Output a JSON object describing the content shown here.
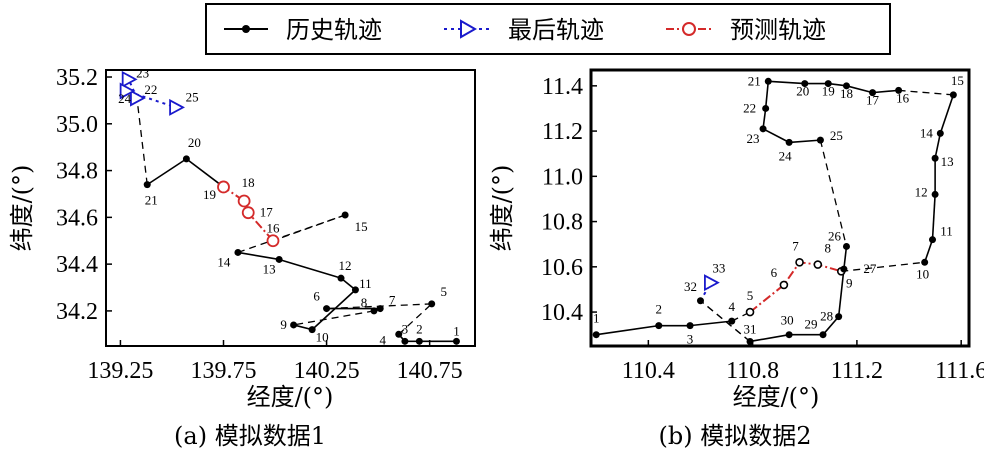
{
  "legend": {
    "items": [
      {
        "label": "历史轨迹",
        "color": "#000000",
        "marker": "filled-circle",
        "line": "solid"
      },
      {
        "label": "最后轨迹",
        "color": "#1a1acc",
        "marker": "triangle-right",
        "line": "dotted"
      },
      {
        "label": "预测轨迹",
        "color": "#d42a2a",
        "marker": "open-circle",
        "line": "dashdot"
      }
    ]
  },
  "colors": {
    "history": "#000000",
    "last": "#1a1acc",
    "predicted": "#d42a2a",
    "connector": "#000000"
  },
  "chart_data": [
    {
      "type": "line",
      "caption": "(a) 模拟数据1",
      "xlabel": "经度/(°)",
      "ylabel": "纬度/(°)",
      "xlim": [
        139.18,
        140.97
      ],
      "ylim": [
        34.05,
        35.23
      ],
      "xticks": [
        139.25,
        139.75,
        140.25,
        140.75
      ],
      "xtick_labels": [
        "139.25",
        "139.75",
        "140.25",
        "140.75"
      ],
      "yticks": [
        34.2,
        34.4,
        34.6,
        34.8,
        35.0,
        35.2
      ],
      "ytick_labels": [
        "34.2",
        "34.4",
        "34.6",
        "34.8",
        "35.0",
        "35.2"
      ],
      "points": [
        {
          "id": 1,
          "x": 140.88,
          "y": 34.07
        },
        {
          "id": 2,
          "x": 140.7,
          "y": 34.07
        },
        {
          "id": 3,
          "x": 140.63,
          "y": 34.07
        },
        {
          "id": 4,
          "x": 140.6,
          "y": 34.1
        },
        {
          "id": 5,
          "x": 140.76,
          "y": 34.23
        },
        {
          "id": 6,
          "x": 140.25,
          "y": 34.21
        },
        {
          "id": 7,
          "x": 140.51,
          "y": 34.21
        },
        {
          "id": 8,
          "x": 140.48,
          "y": 34.2
        },
        {
          "id": 9,
          "x": 140.09,
          "y": 34.14
        },
        {
          "id": 10,
          "x": 140.18,
          "y": 34.12
        },
        {
          "id": 11,
          "x": 140.39,
          "y": 34.29
        },
        {
          "id": 12,
          "x": 140.32,
          "y": 34.34
        },
        {
          "id": 13,
          "x": 140.02,
          "y": 34.42
        },
        {
          "id": 14,
          "x": 139.82,
          "y": 34.45
        },
        {
          "id": 15,
          "x": 140.34,
          "y": 34.61
        },
        {
          "id": 16,
          "x": 139.99,
          "y": 34.5
        },
        {
          "id": 17,
          "x": 139.87,
          "y": 34.62
        },
        {
          "id": 18,
          "x": 139.85,
          "y": 34.67
        },
        {
          "id": 19,
          "x": 139.75,
          "y": 34.73
        },
        {
          "id": 20,
          "x": 139.57,
          "y": 34.85
        },
        {
          "id": 21,
          "x": 139.38,
          "y": 34.74
        },
        {
          "id": 22,
          "x": 139.33,
          "y": 35.11
        },
        {
          "id": 23,
          "x": 139.29,
          "y": 35.19
        },
        {
          "id": 24,
          "x": 139.28,
          "y": 35.14
        },
        {
          "id": 25,
          "x": 139.52,
          "y": 35.07
        }
      ],
      "history_path": [
        1,
        2,
        3,
        4,
        5,
        6,
        7,
        8,
        9,
        10,
        11,
        12,
        13,
        14,
        15,
        16,
        17,
        18,
        19,
        20,
        21
      ],
      "history_connectors": [
        [
          4,
          5
        ],
        [
          5,
          6
        ],
        [
          8,
          9
        ],
        [
          14,
          15
        ],
        [
          15,
          16
        ]
      ],
      "predicted_path": [
        16,
        17,
        18,
        19
      ],
      "last_path": [
        22,
        23,
        24,
        25
      ],
      "last_connectors": [
        [
          21,
          22
        ]
      ]
    },
    {
      "type": "line",
      "caption": "(b) 模拟数据2",
      "xlabel": "经度/(°)",
      "ylabel": "纬度/(°)",
      "xlim": [
        110.18,
        111.63
      ],
      "ylim": [
        10.25,
        11.47
      ],
      "xticks": [
        110.4,
        110.8,
        111.2,
        111.6
      ],
      "xtick_labels": [
        "110.4",
        "110.8",
        "111.2",
        "111.6"
      ],
      "yticks": [
        10.4,
        10.6,
        10.8,
        11.0,
        11.2,
        11.4
      ],
      "ytick_labels": [
        "10.4",
        "10.6",
        "10.8",
        "11.0",
        "11.2",
        "11.4"
      ],
      "points": [
        {
          "id": 1,
          "x": 110.2,
          "y": 10.3
        },
        {
          "id": 2,
          "x": 110.44,
          "y": 10.34
        },
        {
          "id": 3,
          "x": 110.56,
          "y": 10.34
        },
        {
          "id": 4,
          "x": 110.72,
          "y": 10.36
        },
        {
          "id": 5,
          "x": 110.79,
          "y": 10.4
        },
        {
          "id": 6,
          "x": 110.92,
          "y": 10.52
        },
        {
          "id": 7,
          "x": 110.98,
          "y": 10.62
        },
        {
          "id": 8,
          "x": 111.05,
          "y": 10.61
        },
        {
          "id": 9,
          "x": 111.14,
          "y": 10.58
        },
        {
          "id": 10,
          "x": 111.46,
          "y": 10.62
        },
        {
          "id": 11,
          "x": 111.49,
          "y": 10.72
        },
        {
          "id": 12,
          "x": 111.5,
          "y": 10.92
        },
        {
          "id": 13,
          "x": 111.5,
          "y": 11.08
        },
        {
          "id": 14,
          "x": 111.52,
          "y": 11.19
        },
        {
          "id": 15,
          "x": 111.57,
          "y": 11.36
        },
        {
          "id": 16,
          "x": 111.36,
          "y": 11.38
        },
        {
          "id": 17,
          "x": 111.26,
          "y": 11.37
        },
        {
          "id": 18,
          "x": 111.16,
          "y": 11.4
        },
        {
          "id": 19,
          "x": 111.09,
          "y": 11.41
        },
        {
          "id": 20,
          "x": 111.0,
          "y": 11.41
        },
        {
          "id": 21,
          "x": 110.86,
          "y": 11.42
        },
        {
          "id": 22,
          "x": 110.85,
          "y": 11.3
        },
        {
          "id": 23,
          "x": 110.84,
          "y": 11.21
        },
        {
          "id": 24,
          "x": 110.94,
          "y": 11.15
        },
        {
          "id": 25,
          "x": 111.06,
          "y": 11.16
        },
        {
          "id": 26,
          "x": 111.16,
          "y": 10.69
        },
        {
          "id": 27,
          "x": 111.15,
          "y": 10.59
        },
        {
          "id": 28,
          "x": 111.13,
          "y": 10.38
        },
        {
          "id": 29,
          "x": 111.07,
          "y": 10.3
        },
        {
          "id": 30,
          "x": 110.94,
          "y": 10.3
        },
        {
          "id": 31,
          "x": 110.79,
          "y": 10.27
        },
        {
          "id": 32,
          "x": 110.6,
          "y": 10.45
        },
        {
          "id": 33,
          "x": 110.64,
          "y": 10.53
        }
      ],
      "history_path": [
        1,
        2,
        3,
        4,
        5,
        6,
        7,
        8,
        9,
        10,
        11,
        12,
        13,
        14,
        15,
        16,
        17,
        18,
        19,
        20,
        21,
        22,
        23,
        24,
        25,
        26,
        27,
        28,
        29,
        30,
        31,
        32
      ],
      "history_connectors": [
        [
          4,
          5
        ],
        [
          9,
          10
        ],
        [
          15,
          16
        ],
        [
          25,
          26
        ],
        [
          31,
          32
        ]
      ],
      "predicted_path": [
        5,
        6,
        7,
        8,
        9
      ],
      "last_path": [
        32,
        33
      ],
      "last_connectors": [
        [
          31,
          32
        ]
      ]
    }
  ]
}
